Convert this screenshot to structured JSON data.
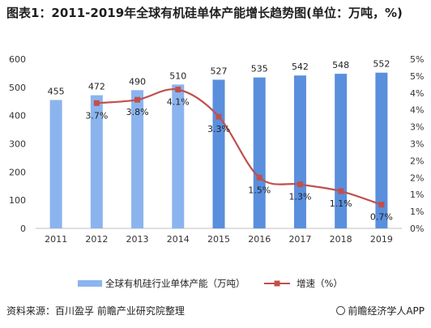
{
  "title": "图表1：2011-2019年全球有机硅单体产能增长趋势图(单位：万吨，%)",
  "source": "资料来源：百川盈孚  前瞻产业研究院整理",
  "brand": "前瞻经济学人APP",
  "colors": {
    "bar": "#8bb4ee",
    "bar_dark": "#5a8fdd",
    "line": "#c0504d",
    "axis_text": "#333333",
    "grid": "#d9d9d9"
  },
  "chart_data": {
    "type": "bar",
    "categories": [
      "2011",
      "2012",
      "2013",
      "2014",
      "2015",
      "2016",
      "2017",
      "2018",
      "2019"
    ],
    "series": [
      {
        "name": "全球有机硅行业单体产能（万吨）",
        "type": "bar",
        "axis": "left",
        "values": [
          455,
          472,
          490,
          510,
          527,
          535,
          542,
          548,
          552
        ]
      },
      {
        "name": "增速（%）",
        "type": "line",
        "axis": "right",
        "values": [
          null,
          3.7,
          3.8,
          4.1,
          3.3,
          1.5,
          1.3,
          1.1,
          0.7
        ],
        "labels": [
          "",
          "3.7%",
          "3.8%",
          "4.1%",
          "3.3%",
          "1.5%",
          "1.3%",
          "1.1%",
          "0.7%"
        ]
      }
    ],
    "y_left": {
      "min": 0,
      "max": 600,
      "ticks": [
        0,
        100,
        200,
        300,
        400,
        500,
        600
      ]
    },
    "y_right": {
      "min": 0,
      "max": 5,
      "ticks": [
        "0%",
        "1%",
        "1%",
        "2%",
        "2%",
        "3%",
        "3%",
        "4%",
        "4%",
        "5%",
        "5%"
      ]
    },
    "grid": false,
    "legend": "bottom"
  }
}
